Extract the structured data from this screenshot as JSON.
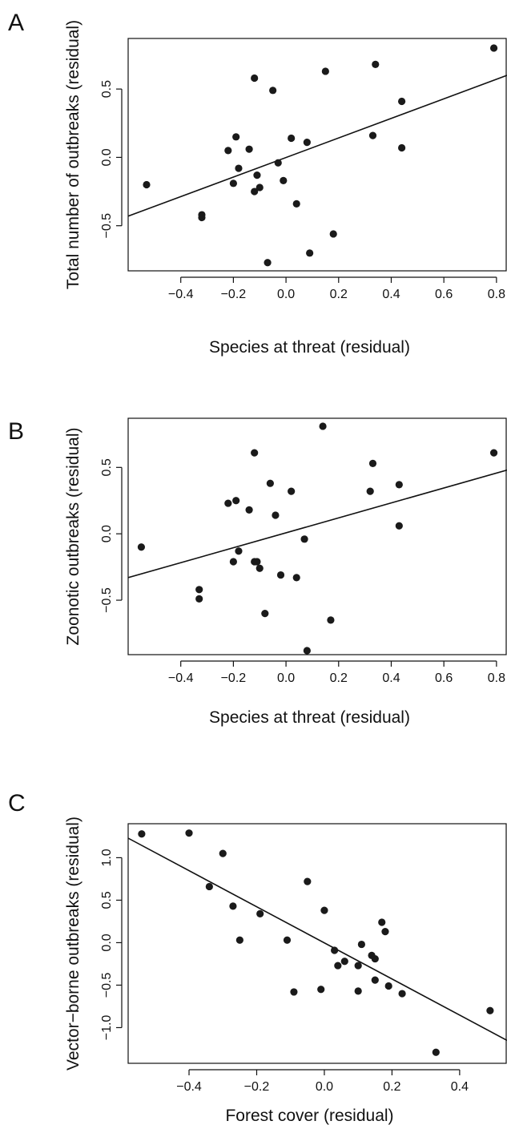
{
  "chart_data": [
    {
      "type": "scatter",
      "panel_label": "A",
      "xlabel": "Species at threat (residual)",
      "ylabel": "Total number of outbreaks (residual)",
      "xlim": [
        -0.6,
        0.84
      ],
      "ylim": [
        -0.83,
        0.87
      ],
      "xticks": [
        -0.4,
        -0.2,
        0.0,
        0.2,
        0.4,
        0.6,
        0.8
      ],
      "xtick_labels": [
        "−0.4",
        "−0.2",
        "0.0",
        "0.2",
        "0.4",
        "0.6",
        "0.8"
      ],
      "yticks": [
        -0.5,
        0.0,
        0.5
      ],
      "ytick_labels": [
        "−0.5",
        "0.0",
        "0.5"
      ],
      "fit_line": {
        "x": [
          -0.6,
          0.84
        ],
        "y": [
          -0.43,
          0.6
        ]
      },
      "points": [
        {
          "x": -0.53,
          "y": -0.2
        },
        {
          "x": -0.32,
          "y": -0.42
        },
        {
          "x": -0.32,
          "y": -0.44
        },
        {
          "x": -0.22,
          "y": 0.05
        },
        {
          "x": -0.19,
          "y": 0.15
        },
        {
          "x": -0.2,
          "y": -0.19
        },
        {
          "x": -0.18,
          "y": -0.08
        },
        {
          "x": -0.14,
          "y": 0.06
        },
        {
          "x": -0.12,
          "y": 0.58
        },
        {
          "x": -0.11,
          "y": -0.13
        },
        {
          "x": -0.12,
          "y": -0.25
        },
        {
          "x": -0.1,
          "y": -0.22
        },
        {
          "x": -0.07,
          "y": -0.77
        },
        {
          "x": -0.05,
          "y": 0.49
        },
        {
          "x": -0.03,
          "y": -0.04
        },
        {
          "x": -0.01,
          "y": -0.17
        },
        {
          "x": 0.02,
          "y": 0.14
        },
        {
          "x": 0.04,
          "y": -0.34
        },
        {
          "x": 0.08,
          "y": 0.11
        },
        {
          "x": 0.09,
          "y": -0.7
        },
        {
          "x": 0.15,
          "y": 0.63
        },
        {
          "x": 0.18,
          "y": -0.56
        },
        {
          "x": 0.33,
          "y": 0.16
        },
        {
          "x": 0.34,
          "y": 0.68
        },
        {
          "x": 0.44,
          "y": 0.41
        },
        {
          "x": 0.44,
          "y": 0.07
        },
        {
          "x": 0.79,
          "y": 0.8
        }
      ]
    },
    {
      "type": "scatter",
      "panel_label": "B",
      "xlabel": "Species at threat (residual)",
      "ylabel": "Zoonotic outbreaks (residual)",
      "xlim": [
        -0.6,
        0.84
      ],
      "ylim": [
        -0.91,
        0.87
      ],
      "xticks": [
        -0.4,
        -0.2,
        0.0,
        0.2,
        0.4,
        0.6,
        0.8
      ],
      "xtick_labels": [
        "−0.4",
        "−0.2",
        "0.0",
        "0.2",
        "0.4",
        "0.6",
        "0.8"
      ],
      "yticks": [
        -0.5,
        0.0,
        0.5
      ],
      "ytick_labels": [
        "−0.5",
        "0.0",
        "0.5"
      ],
      "fit_line": {
        "x": [
          -0.6,
          0.84
        ],
        "y": [
          -0.33,
          0.48
        ]
      },
      "points": [
        {
          "x": -0.55,
          "y": -0.1
        },
        {
          "x": -0.33,
          "y": -0.42
        },
        {
          "x": -0.33,
          "y": -0.49
        },
        {
          "x": -0.22,
          "y": 0.23
        },
        {
          "x": -0.19,
          "y": 0.25
        },
        {
          "x": -0.2,
          "y": -0.21
        },
        {
          "x": -0.18,
          "y": -0.13
        },
        {
          "x": -0.14,
          "y": 0.18
        },
        {
          "x": -0.12,
          "y": 0.61
        },
        {
          "x": -0.12,
          "y": -0.21
        },
        {
          "x": -0.11,
          "y": -0.21
        },
        {
          "x": -0.1,
          "y": -0.26
        },
        {
          "x": -0.08,
          "y": -0.6
        },
        {
          "x": -0.06,
          "y": 0.38
        },
        {
          "x": -0.04,
          "y": 0.14
        },
        {
          "x": -0.02,
          "y": -0.31
        },
        {
          "x": 0.02,
          "y": 0.32
        },
        {
          "x": 0.04,
          "y": -0.33
        },
        {
          "x": 0.07,
          "y": -0.04
        },
        {
          "x": 0.08,
          "y": -0.88
        },
        {
          "x": 0.14,
          "y": 0.81
        },
        {
          "x": 0.17,
          "y": -0.65
        },
        {
          "x": 0.32,
          "y": 0.32
        },
        {
          "x": 0.33,
          "y": 0.53
        },
        {
          "x": 0.43,
          "y": 0.37
        },
        {
          "x": 0.43,
          "y": 0.06
        },
        {
          "x": 0.79,
          "y": 0.61
        }
      ]
    },
    {
      "type": "scatter",
      "panel_label": "C",
      "xlabel": "Forest cover (residual)",
      "ylabel": "Vector−borne outbreaks (residual)",
      "xlim": [
        -0.58,
        0.54
      ],
      "ylim": [
        -1.42,
        1.4
      ],
      "xticks": [
        -0.4,
        -0.2,
        0.0,
        0.2,
        0.4
      ],
      "xtick_labels": [
        "−0.4",
        "−0.2",
        "0.0",
        "0.2",
        "0.4"
      ],
      "yticks": [
        -1.0,
        -0.5,
        0.0,
        0.5,
        1.0
      ],
      "ytick_labels": [
        "−1.0",
        "−0.5",
        "0.0",
        "0.5",
        "1.0"
      ],
      "fit_line": {
        "x": [
          -0.58,
          0.54
        ],
        "y": [
          1.23,
          -1.15
        ]
      },
      "points": [
        {
          "x": -0.54,
          "y": 1.28
        },
        {
          "x": -0.4,
          "y": 1.29
        },
        {
          "x": -0.3,
          "y": 1.05
        },
        {
          "x": -0.34,
          "y": 0.66
        },
        {
          "x": -0.27,
          "y": 0.43
        },
        {
          "x": -0.25,
          "y": 0.03
        },
        {
          "x": -0.19,
          "y": 0.34
        },
        {
          "x": -0.11,
          "y": 0.03
        },
        {
          "x": -0.09,
          "y": -0.58
        },
        {
          "x": -0.05,
          "y": 0.72
        },
        {
          "x": -0.01,
          "y": -0.55
        },
        {
          "x": 0.0,
          "y": 0.38
        },
        {
          "x": 0.03,
          "y": -0.09
        },
        {
          "x": 0.04,
          "y": -0.27
        },
        {
          "x": 0.06,
          "y": -0.22
        },
        {
          "x": 0.1,
          "y": -0.27
        },
        {
          "x": 0.11,
          "y": -0.02
        },
        {
          "x": 0.1,
          "y": -0.57
        },
        {
          "x": 0.14,
          "y": -0.15
        },
        {
          "x": 0.15,
          "y": -0.19
        },
        {
          "x": 0.15,
          "y": -0.44
        },
        {
          "x": 0.17,
          "y": 0.24
        },
        {
          "x": 0.18,
          "y": 0.13
        },
        {
          "x": 0.19,
          "y": -0.51
        },
        {
          "x": 0.23,
          "y": -0.6
        },
        {
          "x": 0.33,
          "y": -1.29
        },
        {
          "x": 0.49,
          "y": -0.8
        }
      ]
    }
  ]
}
